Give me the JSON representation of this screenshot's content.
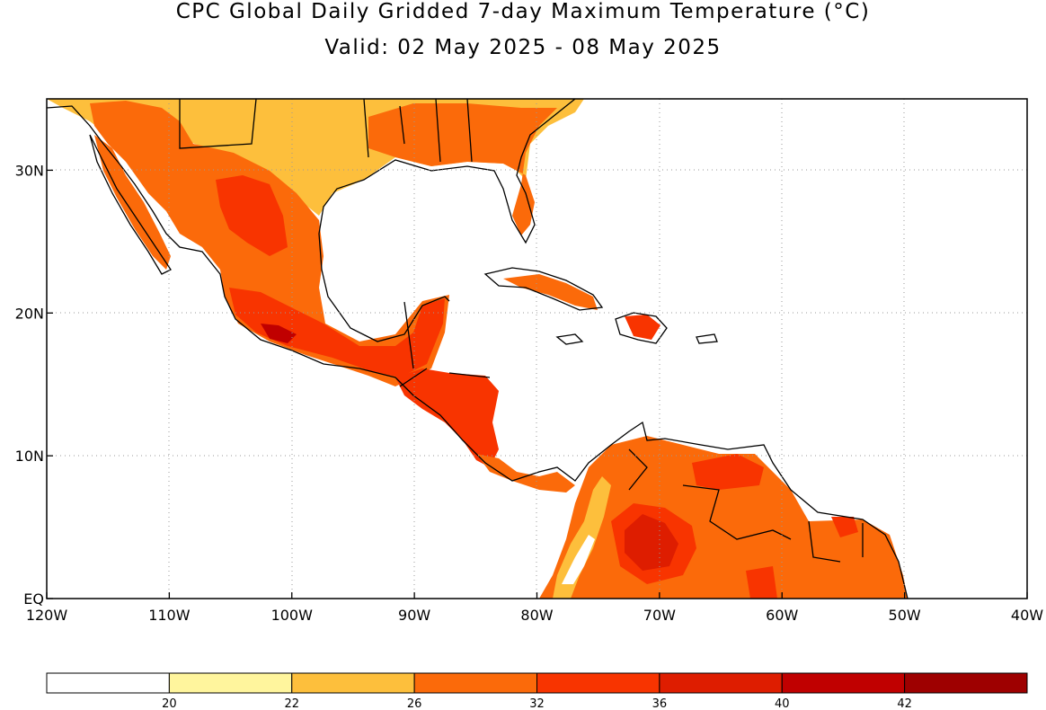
{
  "title": {
    "line1": "CPC Global Daily Gridded 7-day Maximum Temperature (°C)",
    "line2": "Valid: 02 May 2025 - 08 May 2025"
  },
  "map": {
    "lon_range": [
      -120,
      -40
    ],
    "lat_range": [
      0,
      35
    ],
    "lon_ticks": [
      {
        "value": -120,
        "label": "120W"
      },
      {
        "value": -110,
        "label": "110W"
      },
      {
        "value": -100,
        "label": "100W"
      },
      {
        "value": -90,
        "label": "90W"
      },
      {
        "value": -80,
        "label": "80W"
      },
      {
        "value": -70,
        "label": "70W"
      },
      {
        "value": -60,
        "label": "60W"
      },
      {
        "value": -50,
        "label": "50W"
      },
      {
        "value": -40,
        "label": "40W"
      }
    ],
    "lat_ticks": [
      {
        "value": 0,
        "label": "EQ"
      },
      {
        "value": 10,
        "label": "10N"
      },
      {
        "value": 20,
        "label": "20N"
      },
      {
        "value": 30,
        "label": "30N"
      }
    ],
    "grid": "dotted",
    "ocean_color": "#ffffff"
  },
  "colorbar": {
    "colors": [
      "#ffffff",
      "#fff59d",
      "#fdbf3c",
      "#fb6a0a",
      "#f83400",
      "#de1d00",
      "#c00000",
      "#9e0000"
    ],
    "labels": [
      "20",
      "22",
      "26",
      "32",
      "36",
      "40",
      "42"
    ]
  }
}
